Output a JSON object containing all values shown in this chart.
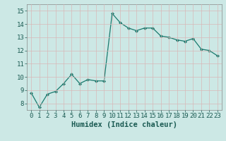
{
  "x": [
    0,
    1,
    2,
    3,
    4,
    5,
    6,
    7,
    8,
    9,
    10,
    11,
    12,
    13,
    14,
    15,
    16,
    17,
    18,
    19,
    20,
    21,
    22,
    23
  ],
  "y": [
    8.8,
    7.7,
    8.7,
    8.9,
    9.5,
    10.2,
    9.5,
    9.8,
    9.7,
    9.7,
    14.8,
    14.1,
    13.7,
    13.5,
    13.7,
    13.7,
    13.1,
    13.0,
    12.8,
    12.7,
    12.9,
    12.1,
    12.0,
    11.6
  ],
  "line_color": "#1a7a6e",
  "marker_color": "#1a7a6e",
  "bg_color": "#cce8e5",
  "grid_color": "#d8b8b8",
  "xlabel": "Humidex (Indice chaleur)",
  "xlim": [
    -0.5,
    23.5
  ],
  "ylim": [
    7.5,
    15.5
  ],
  "yticks": [
    8,
    9,
    10,
    11,
    12,
    13,
    14,
    15
  ],
  "xticks": [
    0,
    1,
    2,
    3,
    4,
    5,
    6,
    7,
    8,
    9,
    10,
    11,
    12,
    13,
    14,
    15,
    16,
    17,
    18,
    19,
    20,
    21,
    22,
    23
  ],
  "xtick_labels": [
    "0",
    "1",
    "2",
    "3",
    "4",
    "5",
    "6",
    "7",
    "8",
    "9",
    "10",
    "11",
    "12",
    "13",
    "14",
    "15",
    "16",
    "17",
    "18",
    "19",
    "20",
    "21",
    "22",
    "23"
  ],
  "font_size_axis": 6.5,
  "font_size_label": 7.5,
  "font_color": "#1a5a52",
  "spine_color": "#888888"
}
